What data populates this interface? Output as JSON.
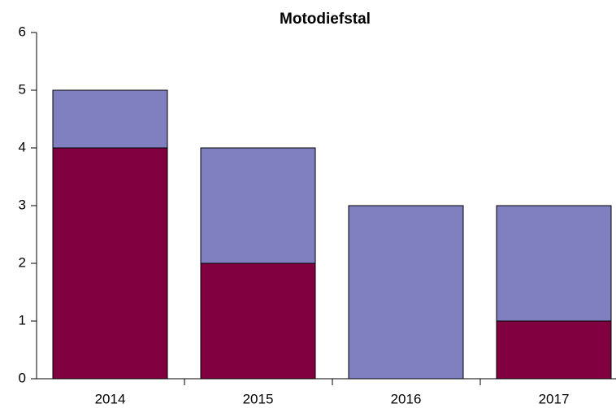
{
  "chart_data": {
    "type": "stacked_bar",
    "title": "Motodiefstal",
    "categories": [
      "2014",
      "2015",
      "2016",
      "2017"
    ],
    "series": [
      {
        "color": "#800040",
        "values": [
          4,
          2,
          0,
          1
        ]
      },
      {
        "color": "#8080c0",
        "values": [
          1,
          2,
          3,
          2
        ]
      }
    ],
    "ylim": [
      0,
      6
    ],
    "yticks": [
      0,
      1,
      2,
      3,
      4,
      5,
      6
    ],
    "grid": false
  }
}
